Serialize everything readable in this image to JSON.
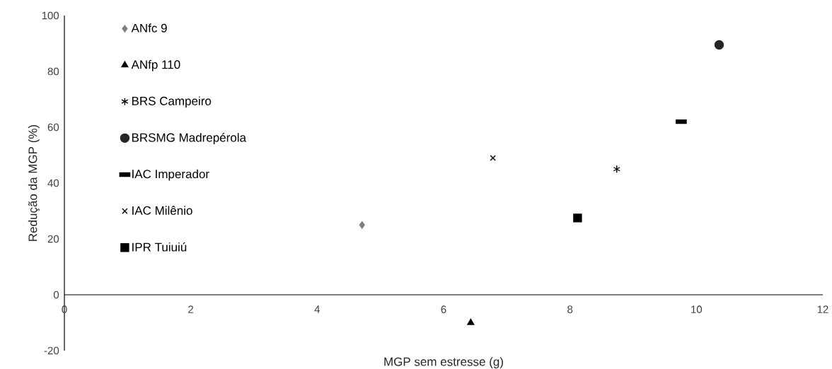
{
  "chart_data": {
    "type": "scatter",
    "xlabel": "MGP sem estresse (g)",
    "ylabel": "Redução da MGP (%)",
    "xlim": [
      0,
      12
    ],
    "ylim": [
      -20,
      100
    ],
    "xticks": [
      0,
      2,
      4,
      6,
      8,
      10,
      12
    ],
    "yticks": [
      -20,
      0,
      20,
      40,
      60,
      80,
      100
    ],
    "legend": "top left",
    "series": [
      {
        "name": "ANfc 9",
        "color": "#7f7f7f",
        "marker": "diamond",
        "x": [
          4.71
        ],
        "values": [
          25
        ]
      },
      {
        "name": "ANfp 110",
        "color": "#000000",
        "marker": "triangle",
        "x": [
          6.43
        ],
        "values": [
          -10
        ]
      },
      {
        "name": "BRS Campeiro",
        "color": "#000000",
        "x": [
          8.74
        ],
        "values": [
          45
        ]
      },
      {
        "name": "BRSMG Madrepérola",
        "color": "#262626",
        "marker": "circle",
        "x": [
          10.36
        ],
        "values": [
          89.5
        ]
      },
      {
        "name": "IAC Imperador",
        "color": "#000000",
        "marker": "square",
        "x": [
          9.76
        ],
        "values": [
          62
        ]
      },
      {
        "name": "IAC Milênio",
        "color": "#000000",
        "marker": "cross",
        "x": [
          6.78
        ],
        "values": [
          49
        ]
      },
      {
        "name": "IPR Tuiuiú",
        "color": "#000000",
        "marker": "square",
        "x": [
          8.12
        ],
        "values": [
          27.5
        ]
      }
    ]
  }
}
